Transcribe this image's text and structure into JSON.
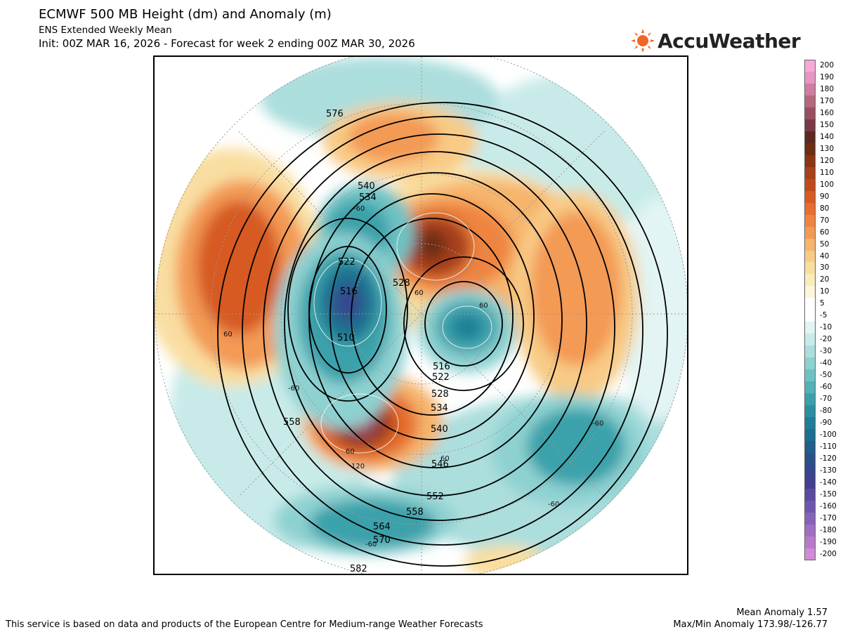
{
  "header": {
    "title": "ECMWF 500 MB Height (dm) and Anomaly (m)",
    "subtitle": "ENS Extended Weekly Mean",
    "init_line": "Init: 00Z MAR 16, 2026 - Forecast for week 2 ending 00Z MAR 30, 2026"
  },
  "brand": {
    "name": "AccuWeather",
    "icon": "sun-logo-icon",
    "color": "#f26522"
  },
  "legend": {
    "labels": [
      "200",
      "190",
      "180",
      "170",
      "160",
      "150",
      "140",
      "130",
      "120",
      "110",
      "100",
      "90",
      "80",
      "70",
      "60",
      "50",
      "40",
      "30",
      "20",
      "10",
      "5",
      "-5",
      "-10",
      "-20",
      "-30",
      "-40",
      "-50",
      "-60",
      "-70",
      "-80",
      "-90",
      "-100",
      "-110",
      "-120",
      "-130",
      "-140",
      "-150",
      "-160",
      "-170",
      "-180",
      "-190",
      "-200"
    ],
    "colors": [
      "#f7a8d8",
      "#e795c3",
      "#cf7da0",
      "#b5677f",
      "#985061",
      "#7a3a45",
      "#5e2a1f",
      "#6e2e14",
      "#8a3613",
      "#a8401a",
      "#c04a1c",
      "#d65a22",
      "#e66e2e",
      "#ef8440",
      "#f39a55",
      "#f6b46c",
      "#f8cb86",
      "#f9dea1",
      "#fbecbb",
      "#fdf6dc",
      "#ffffff",
      "#ffffff",
      "#e2f4f3",
      "#c8ebe9",
      "#acdedd",
      "#8ed1d1",
      "#6fc2c4",
      "#52b2b6",
      "#3aa1aa",
      "#28909f",
      "#1e7f96",
      "#1c6f90",
      "#215e8c",
      "#2a508a",
      "#36468d",
      "#44408f",
      "#5a4aa0",
      "#6e56ae",
      "#8663b9",
      "#9f6fc3",
      "#b87bcb",
      "#d18bd3"
    ]
  },
  "map": {
    "height_contour_labels": [
      "576",
      "540",
      "534",
      "528",
      "522",
      "516",
      "510",
      "516",
      "522",
      "528",
      "534",
      "540",
      "546",
      "552",
      "558",
      "564",
      "570",
      "582",
      "558"
    ],
    "anomaly_labels": [
      "-60",
      "60",
      "60",
      "60",
      "-60",
      "60",
      "120",
      "60",
      "-60",
      "-60",
      "-60"
    ]
  },
  "footer": {
    "credit": "This service is based on data and products of the European Centre for Medium-range Weather Forecasts",
    "mean_anomaly": "Mean Anomaly 1.57",
    "maxmin_anomaly": "Max/Min Anomaly 173.98/-126.77"
  }
}
